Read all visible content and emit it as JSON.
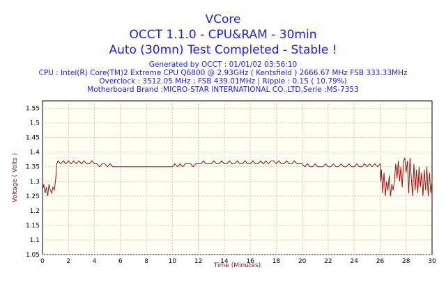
{
  "header": {
    "title_line1": "VCore",
    "title_line2": "OCCT 1.1.0 - CPU&RAM - 30min",
    "title_line3": "Auto (30mn) Test Completed - Stable !",
    "info_line1": "Generated by OCCT : 01/01/02 03:56:10",
    "info_line2": "CPU : Intel(R) Core(TM)2 Extreme CPU Q6800  @ 2.93GHz ( Kentsfield ) 2666.67 MHz FSB 333.33MHz",
    "info_line3": "Overclock : 3512.05 MHz ; FSB 439.01MHz | Ripple : 0.15 ( 10.79%)",
    "info_line4": "Motherboard Brand :MICRO-STAR INTERNATIONAL CO.,LTD,Serie :MS-7353"
  },
  "colors": {
    "title": "#1f1fe0",
    "axis_label": "#a01010",
    "line": "#a01010",
    "plot_bg": "#fffff2",
    "grid": "#c8c8c8"
  },
  "chart_data": {
    "type": "line",
    "xlabel": "Time (Minutes)",
    "ylabel": "Voltage ( Volts )",
    "xlim": [
      0,
      30
    ],
    "ylim": [
      1.05,
      1.575
    ],
    "x_ticks": [
      0,
      2,
      4,
      6,
      8,
      10,
      12,
      14,
      16,
      18,
      20,
      22,
      24,
      26,
      28,
      30
    ],
    "y_ticks": [
      1.05,
      1.1,
      1.15,
      1.2,
      1.25,
      1.3,
      1.35,
      1.4,
      1.45,
      1.5,
      1.55
    ],
    "grid": true,
    "series": [
      {
        "points": [
          [
            0.0,
            1.27
          ],
          [
            0.1,
            1.29
          ],
          [
            0.2,
            1.26
          ],
          [
            0.3,
            1.28
          ],
          [
            0.4,
            1.25
          ],
          [
            0.5,
            1.29
          ],
          [
            0.6,
            1.27
          ],
          [
            0.7,
            1.26
          ],
          [
            0.8,
            1.28
          ],
          [
            0.9,
            1.27
          ],
          [
            1.0,
            1.3
          ],
          [
            1.1,
            1.36
          ],
          [
            1.2,
            1.37
          ],
          [
            1.4,
            1.36
          ],
          [
            1.6,
            1.37
          ],
          [
            1.8,
            1.36
          ],
          [
            2.0,
            1.37
          ],
          [
            2.2,
            1.36
          ],
          [
            2.4,
            1.37
          ],
          [
            2.6,
            1.36
          ],
          [
            2.8,
            1.37
          ],
          [
            3.0,
            1.36
          ],
          [
            3.2,
            1.37
          ],
          [
            3.4,
            1.36
          ],
          [
            3.6,
            1.36
          ],
          [
            3.8,
            1.37
          ],
          [
            4.0,
            1.36
          ],
          [
            4.2,
            1.36
          ],
          [
            4.4,
            1.35
          ],
          [
            4.6,
            1.36
          ],
          [
            4.8,
            1.36
          ],
          [
            5.0,
            1.35
          ],
          [
            5.2,
            1.36
          ],
          [
            5.4,
            1.35
          ],
          [
            5.6,
            1.35
          ],
          [
            5.8,
            1.35
          ],
          [
            6.0,
            1.35
          ],
          [
            6.5,
            1.35
          ],
          [
            7.0,
            1.35
          ],
          [
            7.5,
            1.35
          ],
          [
            8.0,
            1.35
          ],
          [
            8.5,
            1.35
          ],
          [
            9.0,
            1.35
          ],
          [
            9.5,
            1.35
          ],
          [
            10.0,
            1.35
          ],
          [
            10.2,
            1.36
          ],
          [
            10.4,
            1.35
          ],
          [
            10.6,
            1.36
          ],
          [
            10.8,
            1.35
          ],
          [
            11.0,
            1.36
          ],
          [
            11.2,
            1.36
          ],
          [
            11.4,
            1.36
          ],
          [
            11.6,
            1.35
          ],
          [
            11.8,
            1.36
          ],
          [
            12.0,
            1.36
          ],
          [
            12.2,
            1.36
          ],
          [
            12.4,
            1.37
          ],
          [
            12.6,
            1.36
          ],
          [
            12.8,
            1.36
          ],
          [
            13.0,
            1.36
          ],
          [
            13.2,
            1.37
          ],
          [
            13.4,
            1.36
          ],
          [
            13.6,
            1.36
          ],
          [
            13.8,
            1.37
          ],
          [
            14.0,
            1.36
          ],
          [
            14.2,
            1.36
          ],
          [
            14.4,
            1.37
          ],
          [
            14.6,
            1.36
          ],
          [
            14.8,
            1.36
          ],
          [
            15.0,
            1.37
          ],
          [
            15.2,
            1.36
          ],
          [
            15.4,
            1.36
          ],
          [
            15.6,
            1.37
          ],
          [
            15.8,
            1.36
          ],
          [
            16.0,
            1.36
          ],
          [
            16.2,
            1.37
          ],
          [
            16.4,
            1.36
          ],
          [
            16.6,
            1.36
          ],
          [
            16.8,
            1.37
          ],
          [
            17.0,
            1.36
          ],
          [
            17.2,
            1.37
          ],
          [
            17.4,
            1.36
          ],
          [
            17.6,
            1.37
          ],
          [
            17.8,
            1.37
          ],
          [
            18.0,
            1.36
          ],
          [
            18.2,
            1.37
          ],
          [
            18.4,
            1.36
          ],
          [
            18.6,
            1.36
          ],
          [
            18.8,
            1.37
          ],
          [
            19.0,
            1.36
          ],
          [
            19.2,
            1.36
          ],
          [
            19.4,
            1.37
          ],
          [
            19.6,
            1.36
          ],
          [
            19.8,
            1.36
          ],
          [
            20.0,
            1.36
          ],
          [
            20.2,
            1.35
          ],
          [
            20.4,
            1.36
          ],
          [
            20.6,
            1.35
          ],
          [
            20.8,
            1.35
          ],
          [
            21.0,
            1.36
          ],
          [
            21.2,
            1.35
          ],
          [
            21.4,
            1.35
          ],
          [
            21.6,
            1.35
          ],
          [
            21.8,
            1.36
          ],
          [
            22.0,
            1.35
          ],
          [
            22.2,
            1.35
          ],
          [
            22.4,
            1.36
          ],
          [
            22.6,
            1.35
          ],
          [
            22.8,
            1.35
          ],
          [
            23.0,
            1.36
          ],
          [
            23.2,
            1.35
          ],
          [
            23.4,
            1.35
          ],
          [
            23.6,
            1.36
          ],
          [
            23.8,
            1.35
          ],
          [
            24.0,
            1.35
          ],
          [
            24.2,
            1.36
          ],
          [
            24.4,
            1.35
          ],
          [
            24.6,
            1.35
          ],
          [
            24.8,
            1.36
          ],
          [
            25.0,
            1.35
          ],
          [
            25.2,
            1.36
          ],
          [
            25.4,
            1.35
          ],
          [
            25.6,
            1.36
          ],
          [
            25.8,
            1.35
          ],
          [
            26.0,
            1.36
          ],
          [
            26.05,
            1.3
          ],
          [
            26.1,
            1.34
          ],
          [
            26.2,
            1.26
          ],
          [
            26.3,
            1.33
          ],
          [
            26.4,
            1.25
          ],
          [
            26.5,
            1.3
          ],
          [
            26.6,
            1.27
          ],
          [
            26.7,
            1.32
          ],
          [
            26.8,
            1.25
          ],
          [
            26.9,
            1.29
          ],
          [
            27.0,
            1.27
          ],
          [
            27.1,
            1.3
          ],
          [
            27.2,
            1.36
          ],
          [
            27.3,
            1.31
          ],
          [
            27.4,
            1.37
          ],
          [
            27.5,
            1.3
          ],
          [
            27.6,
            1.35
          ],
          [
            27.7,
            1.28
          ],
          [
            27.8,
            1.37
          ],
          [
            27.9,
            1.38
          ],
          [
            28.0,
            1.33
          ],
          [
            28.1,
            1.37
          ],
          [
            28.2,
            1.26
          ],
          [
            28.3,
            1.38
          ],
          [
            28.4,
            1.31
          ],
          [
            28.5,
            1.25
          ],
          [
            28.6,
            1.36
          ],
          [
            28.7,
            1.27
          ],
          [
            28.8,
            1.34
          ],
          [
            28.9,
            1.26
          ],
          [
            29.0,
            1.35
          ],
          [
            29.1,
            1.28
          ],
          [
            29.2,
            1.33
          ],
          [
            29.3,
            1.25
          ],
          [
            29.4,
            1.34
          ],
          [
            29.5,
            1.27
          ],
          [
            29.6,
            1.35
          ],
          [
            29.7,
            1.25
          ],
          [
            29.8,
            1.33
          ],
          [
            29.9,
            1.26
          ],
          [
            30.0,
            1.3
          ]
        ]
      }
    ]
  }
}
